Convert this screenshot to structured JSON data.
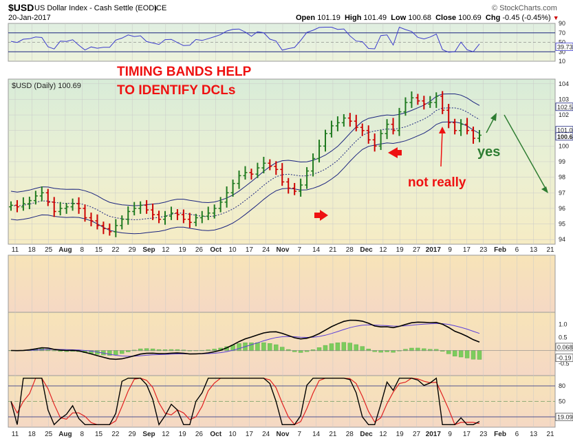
{
  "header": {
    "symbol": "$USD",
    "name": "US Dollar Index - Cash Settle (EOD)",
    "exchange": "ICE",
    "date": "20-Jan-2017",
    "brand": "© StockCharts.com",
    "open_label": "Open",
    "open": "101.19",
    "high_label": "High",
    "high": "101.49",
    "low_label": "Low",
    "low": "100.68",
    "close_label": "Close",
    "close": "100.69",
    "chg_label": "Chg",
    "chg": "-0.45 (-0.45%)"
  },
  "price_panel": {
    "label": "$USD (Daily) 100.69",
    "annotations": {
      "title_line1": "TIMING BANDS HELP",
      "title_line2": "TO IDENTIFY DCLs",
      "not_really": "not really",
      "yes": "yes"
    },
    "y_ticks": [
      "94",
      "95",
      "96",
      "97",
      "98",
      "99",
      "100",
      "101",
      "102",
      "103",
      "104"
    ],
    "value_tags": [
      "102.5",
      "101.0",
      "100.6"
    ]
  },
  "rsi_panel": {
    "y_ticks": [
      "90",
      "70",
      "50",
      "30",
      "10"
    ],
    "value_tag": "39.73",
    "levels": [
      70,
      30
    ]
  },
  "macd_panel": {
    "y_ticks": [
      "1.0",
      "0.5",
      "-0.5"
    ],
    "value_tags": [
      "0.068",
      "-0.19"
    ]
  },
  "stoch_panel": {
    "y_ticks": [
      "80",
      "50",
      "20"
    ],
    "value_tag": "19.09",
    "levels": [
      80,
      20
    ]
  },
  "x_axis": {
    "labels": [
      "11",
      "18",
      "25",
      "Aug",
      "8",
      "15",
      "22",
      "29",
      "Sep",
      "12",
      "19",
      "26",
      "Oct",
      "10",
      "17",
      "24",
      "Nov",
      "7",
      "14",
      "21",
      "28",
      "Dec",
      "12",
      "19",
      "27",
      "2017",
      "9",
      "17",
      "23",
      "Feb",
      "6",
      "13",
      "21"
    ]
  },
  "colors": {
    "price_up": "#1f7a1f",
    "price_down": "#cc0000",
    "bands": "#1a237e",
    "annotation_red": "#ee1111",
    "annotation_green": "#2e7d32",
    "rsi_line": "#3a3acc",
    "macd_line": "#000000",
    "signal_line": "#5b3fd8",
    "histogram": "#7ccc5c",
    "stoch_k": "#000000",
    "stoch_d": "#e02020"
  },
  "chart_data": {
    "type": "line",
    "title": "$USD US Dollar Index - Cash Settle (EOD) ICE",
    "series": [
      {
        "name": "$USD (Daily)",
        "values": [
          96.2,
          96.1,
          96.3,
          96.5,
          96.8,
          97.0,
          96.4,
          95.8,
          96.0,
          96.1,
          96.3,
          96.0,
          95.4,
          95.2,
          94.9,
          94.7,
          94.5,
          94.9,
          95.3,
          95.8,
          96.0,
          96.2,
          95.9,
          95.6,
          95.3,
          95.5,
          95.7,
          95.6,
          95.3,
          95.1,
          95.4,
          95.5,
          95.7,
          96.0,
          96.4,
          97.0,
          97.6,
          98.1,
          98.3,
          98.2,
          98.6,
          98.9,
          98.7,
          98.5,
          97.7,
          97.3,
          97.1,
          97.5,
          98.4,
          99.2,
          100.0,
          100.8,
          101.3,
          101.5,
          101.8,
          101.6,
          101.2,
          101.0,
          100.4,
          100.0,
          100.8,
          101.4,
          101.0,
          102.2,
          102.8,
          103.1,
          102.9,
          102.7,
          102.8,
          103.2,
          102.3,
          101.5,
          101.0,
          101.4,
          101.0,
          100.5,
          100.7
        ]
      }
    ]
  }
}
